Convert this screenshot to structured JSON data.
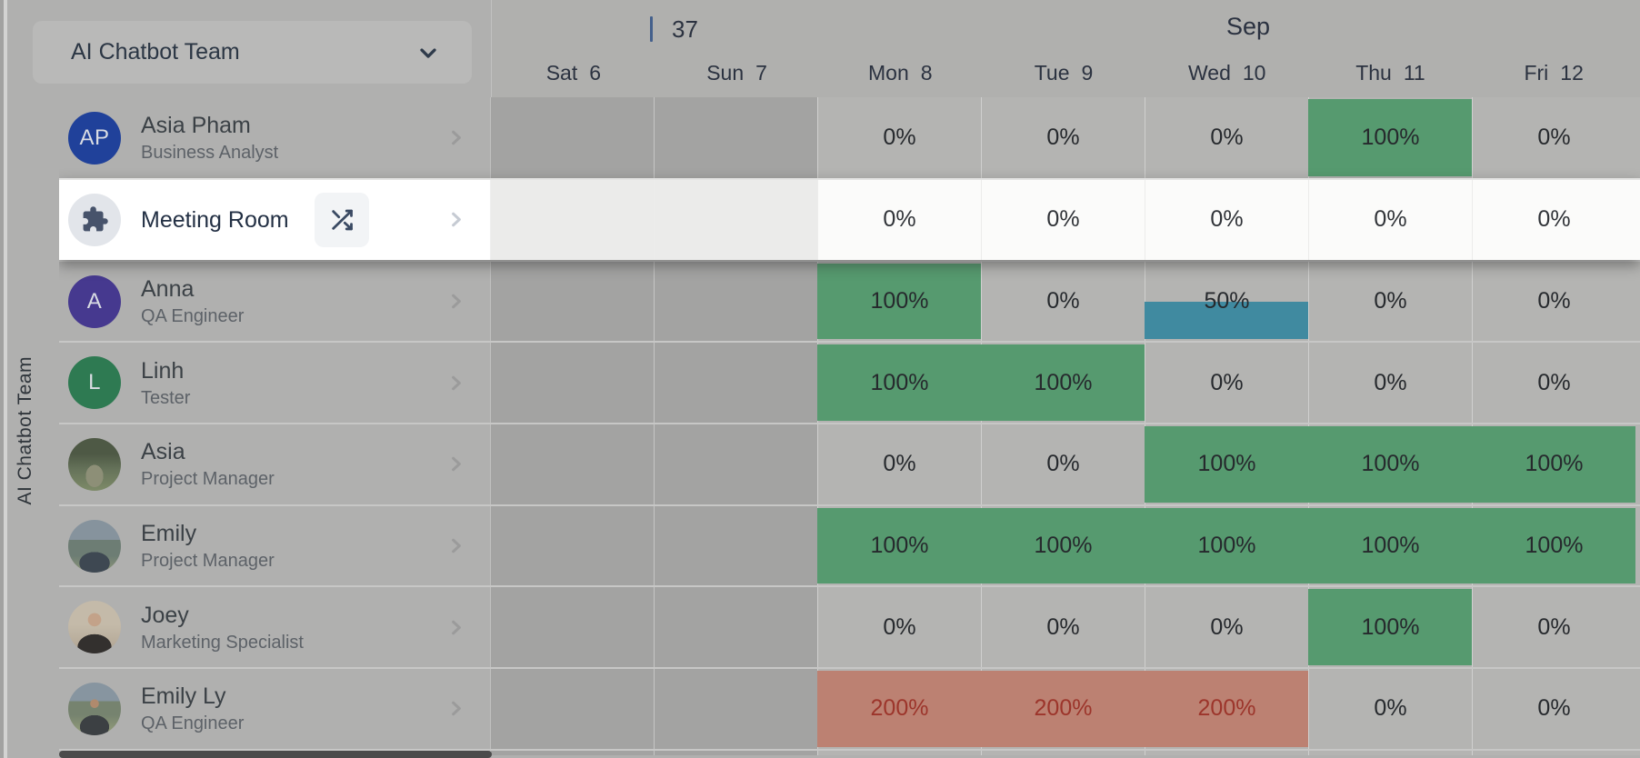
{
  "left_rail": {
    "vertical_label": "AI Chatbot Team"
  },
  "sidebar": {
    "team_selector_label": "AI Chatbot Team"
  },
  "calendar": {
    "week_number": "37",
    "month_label": "Sep",
    "days": [
      {
        "name": "Sat",
        "num": "6",
        "weekend": true
      },
      {
        "name": "Sun",
        "num": "7",
        "weekend": true
      },
      {
        "name": "Mon",
        "num": "8",
        "weekend": false
      },
      {
        "name": "Tue",
        "num": "9",
        "weekend": false
      },
      {
        "name": "Wed",
        "num": "10",
        "weekend": false
      },
      {
        "name": "Thu",
        "num": "11",
        "weekend": false
      },
      {
        "name": "Fri",
        "num": "12",
        "weekend": false
      }
    ]
  },
  "members": [
    {
      "name": "Asia Pham",
      "role": "Business Analyst",
      "highlighted": false,
      "avatar": {
        "type": "initials",
        "text": "AP",
        "bg": "#20419a"
      },
      "cells": [
        {
          "day": "Sat",
          "weekend": true
        },
        {
          "day": "Sun",
          "weekend": true
        },
        {
          "day": "Mon",
          "pct": 0,
          "label": "0%",
          "bar": null
        },
        {
          "day": "Tue",
          "pct": 0,
          "label": "0%",
          "bar": null
        },
        {
          "day": "Wed",
          "pct": 0,
          "label": "0%",
          "bar": null
        },
        {
          "day": "Thu",
          "pct": 100,
          "label": "100%",
          "bar": "green"
        },
        {
          "day": "Fri",
          "pct": 0,
          "label": "0%",
          "bar": null
        }
      ]
    },
    {
      "name": "Meeting Room",
      "role": "",
      "highlighted": true,
      "has_shuffle_button": true,
      "avatar": {
        "type": "icon",
        "icon": "puzzle-icon",
        "bg": "#e2e5ea",
        "fg": "#47536b"
      },
      "cells": [
        {
          "day": "Sat",
          "weekend": true
        },
        {
          "day": "Sun",
          "weekend": true
        },
        {
          "day": "Mon",
          "pct": 0,
          "label": "0%",
          "bar": null
        },
        {
          "day": "Tue",
          "pct": 0,
          "label": "0%",
          "bar": null
        },
        {
          "day": "Wed",
          "pct": 0,
          "label": "0%",
          "bar": null
        },
        {
          "day": "Thu",
          "pct": 0,
          "label": "0%",
          "bar": null
        },
        {
          "day": "Fri",
          "pct": 0,
          "label": "0%",
          "bar": null
        }
      ]
    },
    {
      "name": "Anna",
      "role": "QA Engineer",
      "highlighted": false,
      "avatar": {
        "type": "initials",
        "text": "A",
        "bg": "#46398f"
      },
      "cells": [
        {
          "day": "Sat",
          "weekend": true
        },
        {
          "day": "Sun",
          "weekend": true
        },
        {
          "day": "Mon",
          "pct": 100,
          "label": "100%",
          "bar": "green"
        },
        {
          "day": "Tue",
          "pct": 0,
          "label": "0%",
          "bar": null
        },
        {
          "day": "Wed",
          "pct": 50,
          "label": "50%",
          "bar": "blue"
        },
        {
          "day": "Thu",
          "pct": 0,
          "label": "0%",
          "bar": null
        },
        {
          "day": "Fri",
          "pct": 0,
          "label": "0%",
          "bar": null
        }
      ]
    },
    {
      "name": "Linh",
      "role": "Tester",
      "highlighted": false,
      "avatar": {
        "type": "initials",
        "text": "L",
        "bg": "#2e7a52"
      },
      "cells": [
        {
          "day": "Sat",
          "weekend": true
        },
        {
          "day": "Sun",
          "weekend": true
        },
        {
          "day": "Mon",
          "pct": 100,
          "label": "100%",
          "bar": "green"
        },
        {
          "day": "Tue",
          "pct": 100,
          "label": "100%",
          "bar": "green"
        },
        {
          "day": "Wed",
          "pct": 0,
          "label": "0%",
          "bar": null
        },
        {
          "day": "Thu",
          "pct": 0,
          "label": "0%",
          "bar": null
        },
        {
          "day": "Fri",
          "pct": 0,
          "label": "0%",
          "bar": null
        }
      ]
    },
    {
      "name": "Asia",
      "role": "Project Manager",
      "highlighted": false,
      "avatar": {
        "type": "photo",
        "photo_class": "photo1"
      },
      "cells": [
        {
          "day": "Sat",
          "weekend": true
        },
        {
          "day": "Sun",
          "weekend": true
        },
        {
          "day": "Mon",
          "pct": 0,
          "label": "0%",
          "bar": null
        },
        {
          "day": "Tue",
          "pct": 0,
          "label": "0%",
          "bar": null
        },
        {
          "day": "Wed",
          "pct": 100,
          "label": "100%",
          "bar": "green"
        },
        {
          "day": "Thu",
          "pct": 100,
          "label": "100%",
          "bar": "green"
        },
        {
          "day": "Fri",
          "pct": 100,
          "label": "100%",
          "bar": "green"
        }
      ]
    },
    {
      "name": "Emily",
      "role": "Project Manager",
      "highlighted": false,
      "avatar": {
        "type": "photo",
        "photo_class": "photo2"
      },
      "cells": [
        {
          "day": "Sat",
          "weekend": true
        },
        {
          "day": "Sun",
          "weekend": true
        },
        {
          "day": "Mon",
          "pct": 100,
          "label": "100%",
          "bar": "green"
        },
        {
          "day": "Tue",
          "pct": 100,
          "label": "100%",
          "bar": "green"
        },
        {
          "day": "Wed",
          "pct": 100,
          "label": "100%",
          "bar": "green"
        },
        {
          "day": "Thu",
          "pct": 100,
          "label": "100%",
          "bar": "green"
        },
        {
          "day": "Fri",
          "pct": 100,
          "label": "100%",
          "bar": "green"
        }
      ]
    },
    {
      "name": "Joey",
      "role": "Marketing Specialist",
      "highlighted": false,
      "avatar": {
        "type": "photo",
        "photo_class": "photo3"
      },
      "cells": [
        {
          "day": "Sat",
          "weekend": true
        },
        {
          "day": "Sun",
          "weekend": true
        },
        {
          "day": "Mon",
          "pct": 0,
          "label": "0%",
          "bar": null
        },
        {
          "day": "Tue",
          "pct": 0,
          "label": "0%",
          "bar": null
        },
        {
          "day": "Wed",
          "pct": 0,
          "label": "0%",
          "bar": null
        },
        {
          "day": "Thu",
          "pct": 100,
          "label": "100%",
          "bar": "green"
        },
        {
          "day": "Fri",
          "pct": 0,
          "label": "0%",
          "bar": null
        }
      ]
    },
    {
      "name": "Emily Ly",
      "role": "QA Engineer",
      "highlighted": false,
      "avatar": {
        "type": "photo",
        "photo_class": "photo4"
      },
      "cells": [
        {
          "day": "Sat",
          "weekend": true
        },
        {
          "day": "Sun",
          "weekend": true
        },
        {
          "day": "Mon",
          "pct": 200,
          "label": "200%",
          "bar": "red"
        },
        {
          "day": "Tue",
          "pct": 200,
          "label": "200%",
          "bar": "red"
        },
        {
          "day": "Wed",
          "pct": 200,
          "label": "200%",
          "bar": "red"
        },
        {
          "day": "Thu",
          "pct": 0,
          "label": "0%",
          "bar": null
        },
        {
          "day": "Fri",
          "pct": 0,
          "label": "0%",
          "bar": null
        }
      ]
    }
  ],
  "colors": {
    "bar_green": "#569a6f",
    "bar_blue": "#408aa0",
    "bar_red": "#bc8172",
    "overallocated_text": "#9c352b",
    "week_tick": "#44608c",
    "dim_overlay_base": "#b0b0af",
    "weekend_cell_dim": "#a3a3a2",
    "weekday_cell_dim": "#b4b4b2",
    "highlight_row_bg": "#ffffff"
  },
  "icons": [
    "chevron-down-icon",
    "chevron-right-icon",
    "shuffle-icon",
    "puzzle-icon"
  ]
}
